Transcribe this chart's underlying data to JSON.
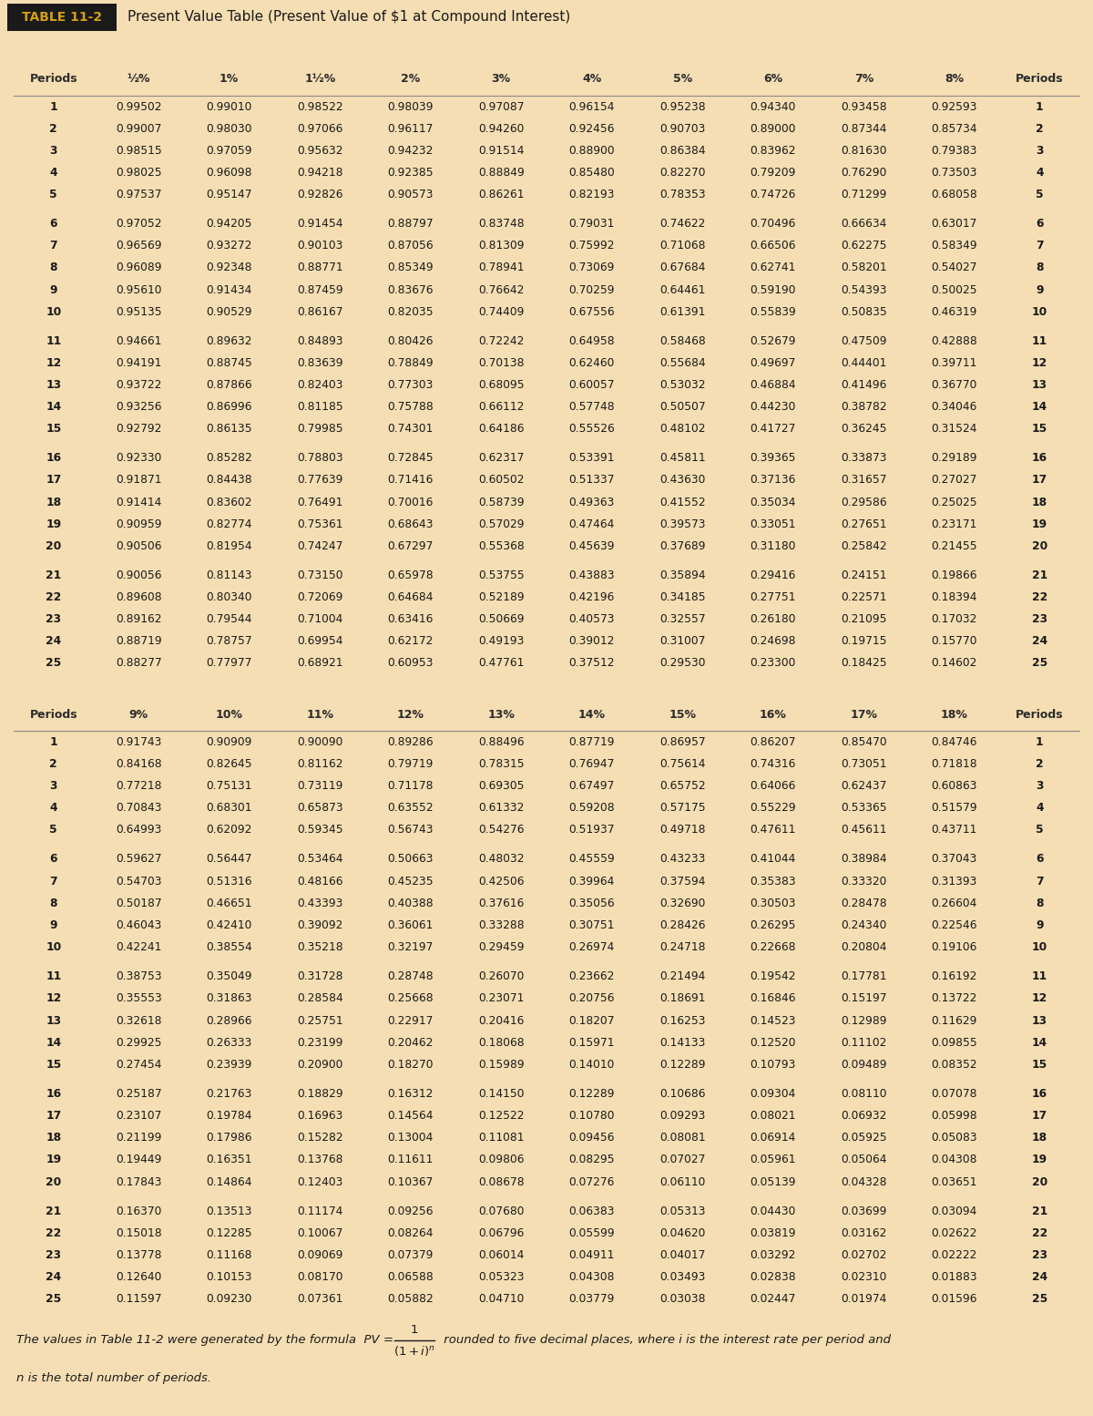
{
  "title_box": "TABLE 11-2",
  "title_text": "Present Value Table (Present Value of $1 at Compound Interest)",
  "table1_headers": [
    "Periods",
    "½%",
    "1%",
    "1½%",
    "2%",
    "3%",
    "4%",
    "5%",
    "6%",
    "7%",
    "8%",
    "Periods"
  ],
  "table1_data": [
    [
      1,
      0.99502,
      0.9901,
      0.98522,
      0.98039,
      0.97087,
      0.96154,
      0.95238,
      0.9434,
      0.93458,
      0.92593,
      1
    ],
    [
      2,
      0.99007,
      0.9803,
      0.97066,
      0.96117,
      0.9426,
      0.92456,
      0.90703,
      0.89,
      0.87344,
      0.85734,
      2
    ],
    [
      3,
      0.98515,
      0.97059,
      0.95632,
      0.94232,
      0.91514,
      0.889,
      0.86384,
      0.83962,
      0.8163,
      0.79383,
      3
    ],
    [
      4,
      0.98025,
      0.96098,
      0.94218,
      0.92385,
      0.88849,
      0.8548,
      0.8227,
      0.79209,
      0.7629,
      0.73503,
      4
    ],
    [
      5,
      0.97537,
      0.95147,
      0.92826,
      0.90573,
      0.86261,
      0.82193,
      0.78353,
      0.74726,
      0.71299,
      0.68058,
      5
    ],
    [
      6,
      0.97052,
      0.94205,
      0.91454,
      0.88797,
      0.83748,
      0.79031,
      0.74622,
      0.70496,
      0.66634,
      0.63017,
      6
    ],
    [
      7,
      0.96569,
      0.93272,
      0.90103,
      0.87056,
      0.81309,
      0.75992,
      0.71068,
      0.66506,
      0.62275,
      0.58349,
      7
    ],
    [
      8,
      0.96089,
      0.92348,
      0.88771,
      0.85349,
      0.78941,
      0.73069,
      0.67684,
      0.62741,
      0.58201,
      0.54027,
      8
    ],
    [
      9,
      0.9561,
      0.91434,
      0.87459,
      0.83676,
      0.76642,
      0.70259,
      0.64461,
      0.5919,
      0.54393,
      0.50025,
      9
    ],
    [
      10,
      0.95135,
      0.90529,
      0.86167,
      0.82035,
      0.74409,
      0.67556,
      0.61391,
      0.55839,
      0.50835,
      0.46319,
      10
    ],
    [
      11,
      0.94661,
      0.89632,
      0.84893,
      0.80426,
      0.72242,
      0.64958,
      0.58468,
      0.52679,
      0.47509,
      0.42888,
      11
    ],
    [
      12,
      0.94191,
      0.88745,
      0.83639,
      0.78849,
      0.70138,
      0.6246,
      0.55684,
      0.49697,
      0.44401,
      0.39711,
      12
    ],
    [
      13,
      0.93722,
      0.87866,
      0.82403,
      0.77303,
      0.68095,
      0.60057,
      0.53032,
      0.46884,
      0.41496,
      0.3677,
      13
    ],
    [
      14,
      0.93256,
      0.86996,
      0.81185,
      0.75788,
      0.66112,
      0.57748,
      0.50507,
      0.4423,
      0.38782,
      0.34046,
      14
    ],
    [
      15,
      0.92792,
      0.86135,
      0.79985,
      0.74301,
      0.64186,
      0.55526,
      0.48102,
      0.41727,
      0.36245,
      0.31524,
      15
    ],
    [
      16,
      0.9233,
      0.85282,
      0.78803,
      0.72845,
      0.62317,
      0.53391,
      0.45811,
      0.39365,
      0.33873,
      0.29189,
      16
    ],
    [
      17,
      0.91871,
      0.84438,
      0.77639,
      0.71416,
      0.60502,
      0.51337,
      0.4363,
      0.37136,
      0.31657,
      0.27027,
      17
    ],
    [
      18,
      0.91414,
      0.83602,
      0.76491,
      0.70016,
      0.58739,
      0.49363,
      0.41552,
      0.35034,
      0.29586,
      0.25025,
      18
    ],
    [
      19,
      0.90959,
      0.82774,
      0.75361,
      0.68643,
      0.57029,
      0.47464,
      0.39573,
      0.33051,
      0.27651,
      0.23171,
      19
    ],
    [
      20,
      0.90506,
      0.81954,
      0.74247,
      0.67297,
      0.55368,
      0.45639,
      0.37689,
      0.3118,
      0.25842,
      0.21455,
      20
    ],
    [
      21,
      0.90056,
      0.81143,
      0.7315,
      0.65978,
      0.53755,
      0.43883,
      0.35894,
      0.29416,
      0.24151,
      0.19866,
      21
    ],
    [
      22,
      0.89608,
      0.8034,
      0.72069,
      0.64684,
      0.52189,
      0.42196,
      0.34185,
      0.27751,
      0.22571,
      0.18394,
      22
    ],
    [
      23,
      0.89162,
      0.79544,
      0.71004,
      0.63416,
      0.50669,
      0.40573,
      0.32557,
      0.2618,
      0.21095,
      0.17032,
      23
    ],
    [
      24,
      0.88719,
      0.78757,
      0.69954,
      0.62172,
      0.49193,
      0.39012,
      0.31007,
      0.24698,
      0.19715,
      0.1577,
      24
    ],
    [
      25,
      0.88277,
      0.77977,
      0.68921,
      0.60953,
      0.47761,
      0.37512,
      0.2953,
      0.233,
      0.18425,
      0.14602,
      25
    ]
  ],
  "table2_headers": [
    "Periods",
    "9%",
    "10%",
    "11%",
    "12%",
    "13%",
    "14%",
    "15%",
    "16%",
    "17%",
    "18%",
    "Periods"
  ],
  "table2_data": [
    [
      1,
      0.91743,
      0.90909,
      0.9009,
      0.89286,
      0.88496,
      0.87719,
      0.86957,
      0.86207,
      0.8547,
      0.84746,
      1
    ],
    [
      2,
      0.84168,
      0.82645,
      0.81162,
      0.79719,
      0.78315,
      0.76947,
      0.75614,
      0.74316,
      0.73051,
      0.71818,
      2
    ],
    [
      3,
      0.77218,
      0.75131,
      0.73119,
      0.71178,
      0.69305,
      0.67497,
      0.65752,
      0.64066,
      0.62437,
      0.60863,
      3
    ],
    [
      4,
      0.70843,
      0.68301,
      0.65873,
      0.63552,
      0.61332,
      0.59208,
      0.57175,
      0.55229,
      0.53365,
      0.51579,
      4
    ],
    [
      5,
      0.64993,
      0.62092,
      0.59345,
      0.56743,
      0.54276,
      0.51937,
      0.49718,
      0.47611,
      0.45611,
      0.43711,
      5
    ],
    [
      6,
      0.59627,
      0.56447,
      0.53464,
      0.50663,
      0.48032,
      0.45559,
      0.43233,
      0.41044,
      0.38984,
      0.37043,
      6
    ],
    [
      7,
      0.54703,
      0.51316,
      0.48166,
      0.45235,
      0.42506,
      0.39964,
      0.37594,
      0.35383,
      0.3332,
      0.31393,
      7
    ],
    [
      8,
      0.50187,
      0.46651,
      0.43393,
      0.40388,
      0.37616,
      0.35056,
      0.3269,
      0.30503,
      0.28478,
      0.26604,
      8
    ],
    [
      9,
      0.46043,
      0.4241,
      0.39092,
      0.36061,
      0.33288,
      0.30751,
      0.28426,
      0.26295,
      0.2434,
      0.22546,
      9
    ],
    [
      10,
      0.42241,
      0.38554,
      0.35218,
      0.32197,
      0.29459,
      0.26974,
      0.24718,
      0.22668,
      0.20804,
      0.19106,
      10
    ],
    [
      11,
      0.38753,
      0.35049,
      0.31728,
      0.28748,
      0.2607,
      0.23662,
      0.21494,
      0.19542,
      0.17781,
      0.16192,
      11
    ],
    [
      12,
      0.35553,
      0.31863,
      0.28584,
      0.25668,
      0.23071,
      0.20756,
      0.18691,
      0.16846,
      0.15197,
      0.13722,
      12
    ],
    [
      13,
      0.32618,
      0.28966,
      0.25751,
      0.22917,
      0.20416,
      0.18207,
      0.16253,
      0.14523,
      0.12989,
      0.11629,
      13
    ],
    [
      14,
      0.29925,
      0.26333,
      0.23199,
      0.20462,
      0.18068,
      0.15971,
      0.14133,
      0.1252,
      0.11102,
      0.09855,
      14
    ],
    [
      15,
      0.27454,
      0.23939,
      0.209,
      0.1827,
      0.15989,
      0.1401,
      0.12289,
      0.10793,
      0.09489,
      0.08352,
      15
    ],
    [
      16,
      0.25187,
      0.21763,
      0.18829,
      0.16312,
      0.1415,
      0.12289,
      0.10686,
      0.09304,
      0.0811,
      0.07078,
      16
    ],
    [
      17,
      0.23107,
      0.19784,
      0.16963,
      0.14564,
      0.12522,
      0.1078,
      0.09293,
      0.08021,
      0.06932,
      0.05998,
      17
    ],
    [
      18,
      0.21199,
      0.17986,
      0.15282,
      0.13004,
      0.11081,
      0.09456,
      0.08081,
      0.06914,
      0.05925,
      0.05083,
      18
    ],
    [
      19,
      0.19449,
      0.16351,
      0.13768,
      0.11611,
      0.09806,
      0.08295,
      0.07027,
      0.05961,
      0.05064,
      0.04308,
      19
    ],
    [
      20,
      0.17843,
      0.14864,
      0.12403,
      0.10367,
      0.08678,
      0.07276,
      0.0611,
      0.05139,
      0.04328,
      0.03651,
      20
    ],
    [
      21,
      0.1637,
      0.13513,
      0.11174,
      0.09256,
      0.0768,
      0.06383,
      0.05313,
      0.0443,
      0.03699,
      0.03094,
      21
    ],
    [
      22,
      0.15018,
      0.12285,
      0.10067,
      0.08264,
      0.06796,
      0.05599,
      0.0462,
      0.03819,
      0.03162,
      0.02622,
      22
    ],
    [
      23,
      0.13778,
      0.11168,
      0.09069,
      0.07379,
      0.06014,
      0.04911,
      0.04017,
      0.03292,
      0.02702,
      0.02222,
      23
    ],
    [
      24,
      0.1264,
      0.10153,
      0.0817,
      0.06588,
      0.05323,
      0.04308,
      0.03493,
      0.02838,
      0.0231,
      0.01883,
      24
    ],
    [
      25,
      0.11597,
      0.0923,
      0.07361,
      0.05882,
      0.0471,
      0.03779,
      0.03038,
      0.02447,
      0.01974,
      0.01596,
      25
    ]
  ],
  "bg_color": "#f5deb3",
  "title_box_bg": "#1a1a1a",
  "title_box_text_color": "#d4a017",
  "title_text_color": "#1a1a1a",
  "bar_color": "#8b1a2a",
  "text_color": "#1a1a1a",
  "header_color": "#2c2c2c",
  "line_color": "#888888"
}
